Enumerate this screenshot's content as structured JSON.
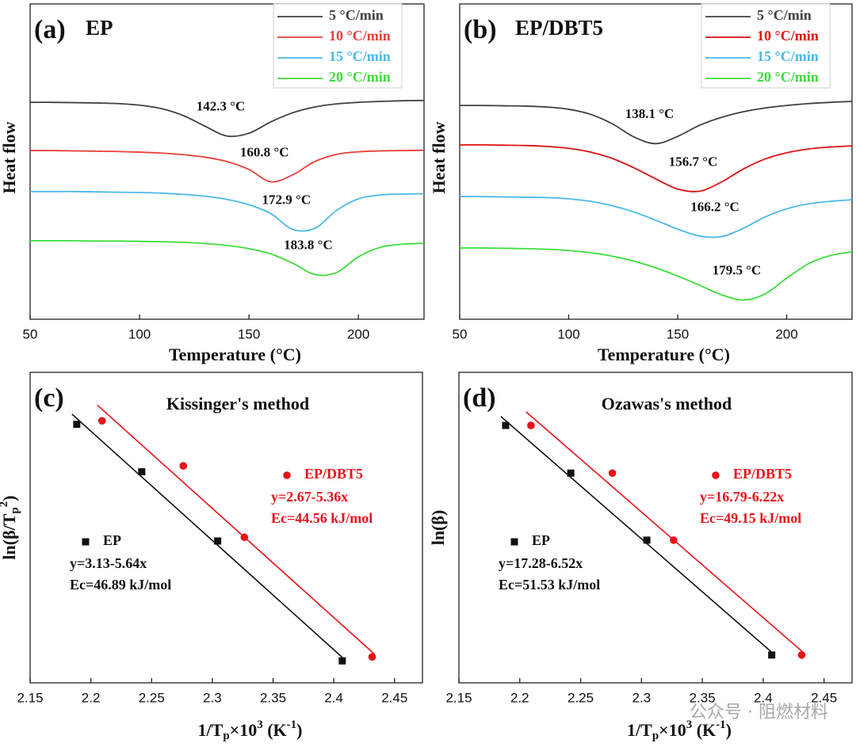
{
  "chart_data": [
    {
      "type": "line",
      "panel_label": "(a)",
      "title": "EP",
      "xlabel": "Temperature (°C)",
      "ylabel": "Heat flow",
      "x": [
        50,
        60,
        70,
        80,
        90,
        100,
        110,
        120,
        130,
        140,
        150,
        160,
        170,
        180,
        190,
        200,
        210,
        220,
        230
      ],
      "xlim": [
        50,
        230
      ],
      "xticks": [
        50,
        100,
        150,
        200
      ],
      "ylim": [
        0,
        100
      ],
      "legend": "upper right",
      "series": [
        {
          "name": "5 °C/min",
          "color": "#404040",
          "values": [
            68.8,
            68.8,
            68.7,
            68.6,
            68.4,
            67.9,
            66.8,
            64.6,
            61.2,
            58.1,
            59.0,
            62.6,
            65.5,
            67.3,
            68.3,
            68.8,
            69.1,
            69.3,
            69.4
          ]
        },
        {
          "name": "10 °C/min",
          "color": "#e8413b",
          "values": [
            53.5,
            53.5,
            53.4,
            53.3,
            53.2,
            53.0,
            52.7,
            52.2,
            51.4,
            50.0,
            47.5,
            43.6,
            45.8,
            50.0,
            52.3,
            53.1,
            53.4,
            53.5,
            53.6
          ]
        },
        {
          "name": "15 °C/min",
          "color": "#4ab8e8",
          "values": [
            40.5,
            40.5,
            40.5,
            40.4,
            40.3,
            40.2,
            40.0,
            39.6,
            39.0,
            38.0,
            36.3,
            33.5,
            28.5,
            28.8,
            34.5,
            38.2,
            39.4,
            39.7,
            39.8
          ]
        },
        {
          "name": "20 °C/min",
          "color": "#3ddc3d",
          "values": [
            24.9,
            24.9,
            24.9,
            24.8,
            24.8,
            24.7,
            24.6,
            24.4,
            24.0,
            23.4,
            22.4,
            20.7,
            17.8,
            14.2,
            14.8,
            19.8,
            22.8,
            23.8,
            24.1
          ]
        }
      ],
      "annotations": [
        "142.3 °C",
        "160.8 °C",
        "172.9 °C",
        "183.8 °C"
      ]
    },
    {
      "type": "line",
      "panel_label": "(b)",
      "title": "EP/DBT5",
      "xlabel": "Temperature (°C)",
      "ylabel": "Heat flow",
      "x": [
        50,
        60,
        70,
        80,
        90,
        100,
        110,
        120,
        130,
        140,
        150,
        160,
        170,
        180,
        190,
        200,
        210,
        220,
        230
      ],
      "xlim": [
        50,
        230
      ],
      "xticks": [
        50,
        100,
        150,
        200
      ],
      "ylim": [
        0,
        100
      ],
      "legend": "upper right",
      "series": [
        {
          "name": "5 °C/min",
          "color": "#404040",
          "values": [
            67.8,
            67.8,
            67.7,
            67.6,
            67.3,
            66.6,
            65.0,
            62.0,
            57.8,
            55.7,
            58.0,
            61.5,
            64.0,
            65.8,
            67.0,
            67.8,
            68.4,
            68.8,
            69.1
          ]
        },
        {
          "name": "10 °C/min",
          "color": "#e01010",
          "values": [
            55.3,
            55.3,
            55.2,
            55.1,
            54.8,
            54.2,
            53.0,
            51.0,
            48.0,
            44.5,
            41.3,
            40.6,
            43.5,
            47.6,
            50.8,
            52.8,
            54.0,
            54.6,
            55.0
          ]
        },
        {
          "name": "15 °C/min",
          "color": "#4ab8e8",
          "values": [
            38.9,
            38.9,
            38.8,
            38.7,
            38.6,
            38.2,
            37.4,
            36.0,
            34.0,
            31.4,
            28.6,
            26.4,
            26.2,
            28.8,
            32.4,
            35.0,
            36.6,
            37.4,
            37.9
          ]
        },
        {
          "name": "20 °C/min",
          "color": "#3ddc3d",
          "values": [
            22.6,
            22.6,
            22.5,
            22.4,
            22.2,
            21.8,
            21.1,
            20.0,
            18.4,
            16.3,
            13.7,
            10.8,
            7.8,
            6.1,
            8.0,
            13.0,
            17.6,
            20.2,
            21.4
          ]
        }
      ],
      "annotations": [
        "138.1 °C",
        "156.7 °C",
        "166.2 °C",
        "179.5  °C"
      ]
    },
    {
      "type": "scatter",
      "panel_label": "(c)",
      "title": "Kissinger's method",
      "xlabel": [
        "1/T",
        "p",
        "×10",
        "3",
        " (K",
        "-1",
        ")"
      ],
      "ylabel": [
        "ln(β/T",
        "p",
        "2",
        ")"
      ],
      "xlim": [
        2.15,
        2.473
      ],
      "xticks": [
        2.15,
        2.2,
        2.25,
        2.3,
        2.35,
        2.4,
        2.45
      ],
      "ylim": [
        -10.56,
        -8.99
      ],
      "series": [
        {
          "name": "EP",
          "color": "#111111",
          "marker": "square",
          "x": [
            2.1884,
            2.2419,
            2.3044,
            2.407
          ],
          "values": [
            -9.253,
            -9.493,
            -9.843,
            -10.449
          ],
          "equation": "y=3.13-5.64x",
          "ec": "Ec=46.89 kJ/mol"
        },
        {
          "name": "EP/DBT5",
          "color": "#e8121a",
          "marker": "circle",
          "x": [
            2.2092,
            2.2761,
            2.3264,
            2.4316
          ],
          "values": [
            -9.235,
            -9.463,
            -9.824,
            -10.429
          ],
          "equation": "y=2.67-5.36x",
          "ec": "Ec=44.56 kJ/mol"
        }
      ]
    },
    {
      "type": "scatter",
      "panel_label": "(d)",
      "title": "Ozawas's method",
      "xlabel": [
        "1/T",
        "p",
        "×10",
        "3",
        " (K",
        "-1",
        ")"
      ],
      "ylabel": "ln(β)",
      "xlim": [
        2.15,
        2.473
      ],
      "xticks": [
        2.15,
        2.2,
        2.25,
        2.3,
        2.35,
        2.4,
        2.45
      ],
      "ylim": [
        1.441,
        3.317
      ],
      "series": [
        {
          "name": "EP",
          "color": "#111111",
          "marker": "square",
          "x": [
            2.1884,
            2.2419,
            2.3044,
            2.407
          ],
          "values": [
            2.996,
            2.708,
            2.303,
            1.609
          ],
          "equation": "y=17.28-6.52x",
          "ec": "Ec=51.53 kJ/mol"
        },
        {
          "name": "EP/DBT5",
          "color": "#e8121a",
          "marker": "circle",
          "x": [
            2.2092,
            2.2761,
            2.3264,
            2.4316
          ],
          "values": [
            2.996,
            2.708,
            2.303,
            1.609
          ],
          "equation": "y=16.79-6.22x",
          "ec": "Ec=49.15 kJ/mol"
        }
      ]
    }
  ],
  "watermark": "公众号 · 阻燃材料"
}
